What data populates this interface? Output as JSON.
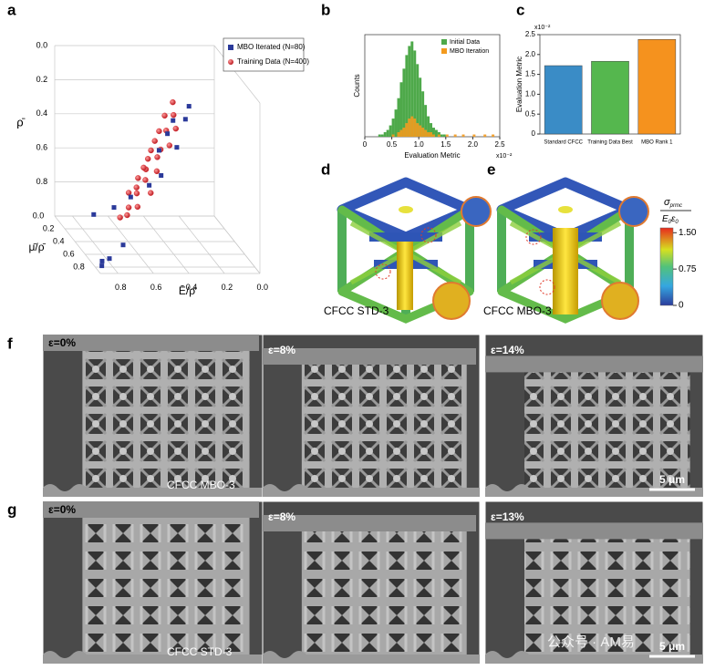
{
  "panels": {
    "a": "a",
    "b": "b",
    "c": "c",
    "d": "d",
    "e": "e",
    "f": "f",
    "g": "g"
  },
  "chart_data": [
    {
      "type": "scatter3d",
      "xlabel": "Ē/ρ̄",
      "ylabel": "μ̄/ρ̄",
      "zlabel": "ρ̄",
      "xlim": [
        0,
        0.9
      ],
      "ylim": [
        0,
        0.9
      ],
      "zlim": [
        0,
        1
      ],
      "xticks": [
        {
          "value": 0.8,
          "label": "0.8"
        },
        {
          "value": 0.6,
          "label": "0.6"
        },
        {
          "value": 0.4,
          "label": "0.4"
        },
        {
          "value": 0.2,
          "label": "0.2"
        },
        {
          "value": 0,
          "label": "0.0"
        }
      ],
      "yticks": [
        {
          "value": 0,
          "label": "0.0"
        },
        {
          "value": 0.2,
          "label": "0.2"
        },
        {
          "value": 0.4,
          "label": "0.4"
        },
        {
          "value": 0.6,
          "label": "0.6"
        },
        {
          "value": 0.8,
          "label": "0.8"
        }
      ],
      "zticks": [
        {
          "value": 0,
          "label": "0.0"
        },
        {
          "value": 0.2,
          "label": "0.2"
        },
        {
          "value": 0.4,
          "label": "0.4"
        },
        {
          "value": 0.6,
          "label": "0.6"
        },
        {
          "value": 0.8,
          "label": "0.8"
        }
      ],
      "legend": "upper right",
      "series": [
        {
          "name": "MBO Iterated (N=80)",
          "color": "#2b3a9a",
          "marker": "square",
          "x": [
            0.3,
            0.34,
            0.37,
            0.4,
            0.43,
            0.46,
            0.5,
            0.55,
            0.6,
            0.68,
            0.72,
            0.78,
            0.82,
            0.85,
            0.88
          ],
          "y": [
            0.55,
            0.62,
            0.48,
            0.66,
            0.58,
            0.52,
            0.7,
            0.64,
            0.45,
            0.4,
            0.72,
            0.35,
            0.8,
            0.76,
            0.86
          ],
          "z": [
            0.15,
            0.2,
            0.26,
            0.35,
            0.3,
            0.42,
            0.5,
            0.58,
            0.72,
            0.8,
            0.9,
            0.86,
            0.95,
            0.98,
            0.97
          ]
        },
        {
          "name": "Training Data (N=400)",
          "color": "#d8242a",
          "marker": "circle",
          "x": [
            0.32,
            0.35,
            0.38,
            0.36,
            0.4,
            0.42,
            0.41,
            0.45,
            0.44,
            0.47,
            0.46,
            0.5,
            0.49,
            0.52,
            0.51,
            0.54,
            0.55,
            0.53,
            0.57,
            0.58,
            0.6,
            0.59,
            0.62,
            0.64,
            0.66
          ],
          "y": [
            0.3,
            0.42,
            0.35,
            0.5,
            0.45,
            0.38,
            0.55,
            0.4,
            0.48,
            0.52,
            0.36,
            0.44,
            0.58,
            0.47,
            0.39,
            0.53,
            0.42,
            0.6,
            0.46,
            0.5,
            0.41,
            0.55,
            0.48,
            0.52,
            0.45
          ],
          "z": [
            0.22,
            0.25,
            0.28,
            0.3,
            0.33,
            0.36,
            0.38,
            0.41,
            0.43,
            0.46,
            0.48,
            0.5,
            0.52,
            0.55,
            0.57,
            0.59,
            0.62,
            0.64,
            0.66,
            0.68,
            0.71,
            0.74,
            0.77,
            0.8,
            0.84
          ]
        }
      ]
    },
    {
      "type": "histogram",
      "xlabel": "Evaluation Metric",
      "ylabel": "Counts",
      "x_multiplier": "x10⁻²",
      "bins": [
        0,
        0.05,
        0.1,
        0.15,
        0.2,
        0.25,
        0.3,
        0.35,
        0.4,
        0.45,
        0.5,
        0.55,
        0.6,
        0.65,
        0.7,
        0.75,
        0.8,
        0.85,
        0.9,
        0.95,
        1,
        1.05,
        1.1,
        1.15,
        1.2,
        1.25,
        1.3,
        1.35,
        1.4,
        1.45,
        1.5,
        1.55,
        1.6,
        1.65,
        1.7,
        1.75,
        1.8,
        1.85,
        1.9,
        1.95,
        2,
        2.05,
        2.1,
        2.15,
        2.2,
        2.25,
        2.3,
        2.35,
        2.4,
        2.45,
        2.5
      ],
      "xlim": [
        0,
        2.5
      ],
      "ylim": [
        0,
        45
      ],
      "xticks": [
        0,
        0.5,
        {
          "value": 1,
          "label": "1.0"
        },
        1.5,
        {
          "value": 2,
          "label": "2.0"
        },
        2.5
      ],
      "legend": "upper right",
      "series": [
        {
          "name": "Initial Data",
          "color": "#4ea94a",
          "values": [
            0,
            0,
            0,
            0,
            0,
            1,
            1,
            2,
            3,
            5,
            8,
            12,
            17,
            24,
            30,
            36,
            40,
            42,
            38,
            32,
            26,
            20,
            14,
            9,
            6,
            4,
            3,
            2,
            1,
            1,
            0,
            0,
            0,
            0,
            0,
            0,
            0,
            0,
            0,
            0,
            0,
            0,
            0,
            0,
            0,
            0,
            0,
            0,
            0,
            0
          ]
        },
        {
          "name": "MBO Iteration",
          "color": "#f39a1e",
          "values": [
            0,
            0,
            0,
            0,
            0,
            0,
            0,
            0,
            0,
            0,
            1,
            0,
            2,
            3,
            4,
            6,
            8,
            9,
            8,
            6,
            5,
            4,
            3,
            2,
            2,
            1,
            0,
            1,
            0,
            0,
            1,
            0,
            0,
            1,
            0,
            0,
            1,
            0,
            0,
            0,
            1,
            0,
            0,
            0,
            1,
            0,
            0,
            1,
            0,
            0
          ]
        }
      ]
    },
    {
      "type": "bar",
      "ylabel": "Evaluation Metric",
      "y_multiplier": "x10⁻²",
      "categories": [
        "Standard CFCC",
        "Training Data Best",
        "MBO Rank 1"
      ],
      "values": [
        1.72,
        1.83,
        2.38
      ],
      "colors": [
        "#3a8cc6",
        "#55b74e",
        "#f5921e"
      ],
      "ylim": [
        0,
        2.5
      ],
      "yticks": [
        0,
        0.5,
        {
          "value": 1,
          "label": "1.0"
        },
        1.5,
        {
          "value": 2,
          "label": "2.0"
        },
        2.5
      ]
    }
  ],
  "colorbar": {
    "numerator": "σ",
    "numerator_sub": "prmc",
    "denominator": [
      "E",
      "0",
      "ε",
      "0"
    ],
    "lim": [
      0,
      1.6
    ],
    "ticks": [
      {
        "value": 1.5,
        "label": "1.50"
      },
      0.75,
      0
    ]
  },
  "renders": {
    "d": "CFCC STD-3",
    "e": "CFCC MBO-3"
  },
  "sem": {
    "f": {
      "strains": [
        "ε=0%",
        "ε=8%",
        "ε=14%"
      ],
      "sample": "CFCC MBO-3",
      "scale": "5 μm"
    },
    "g": {
      "strains": [
        "ε=0%",
        "ε=8%",
        "ε=13%"
      ],
      "sample": "CFCC STD-3",
      "scale": "5 μm"
    }
  },
  "watermark": "公众号 · AM易"
}
